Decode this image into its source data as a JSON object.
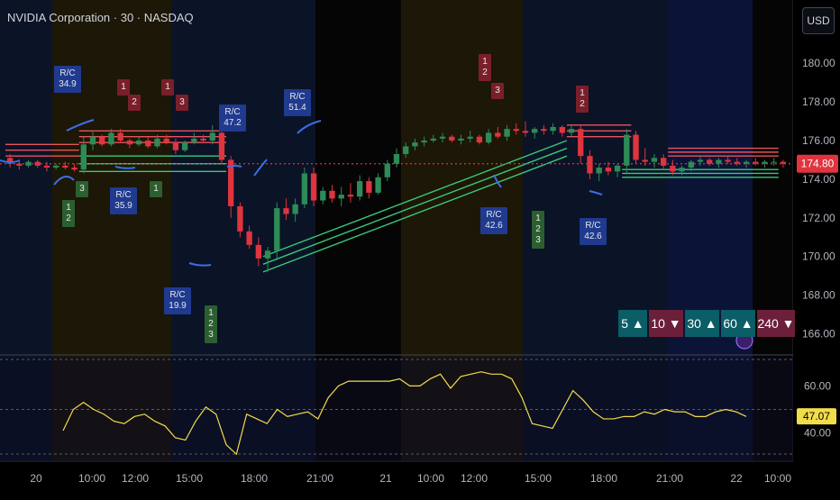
{
  "header": {
    "title": "NVIDIA Corporation · 30 · NASDAQ",
    "currency_button": "USD"
  },
  "colors": {
    "up": "#2e8b57",
    "down": "#e0343e",
    "rc_box": "#1f3a8f",
    "seq_green": "#2b5f2f",
    "seq_red": "#7a1f2a",
    "rsi": "#f2dc4a",
    "support": "#3ddc84",
    "resistance": "#ff5a66",
    "pivot": "#3b6fe8"
  },
  "price_axis": {
    "ticks": [
      "180.00",
      "178.00",
      "176.00",
      "174.00",
      "172.00",
      "170.00",
      "168.00",
      "166.00"
    ],
    "last_price": "174.80",
    "range": [
      165.0,
      181.5
    ]
  },
  "rsi_axis": {
    "ticks": [
      "60.00",
      "40.00"
    ],
    "last_value": "47.07",
    "range": [
      28,
      72
    ]
  },
  "time_axis": {
    "ticks": [
      "20",
      "10:00",
      "12:00",
      "15:00",
      "18:00",
      "21:00",
      "21",
      "10:00",
      "12:00",
      "15:00",
      "18:00",
      "21:00",
      "22",
      "10:00"
    ]
  },
  "chart_data": {
    "type": "candlestick",
    "ylim": [
      165.0,
      181.5
    ],
    "candles": [
      {
        "o": 175.1,
        "h": 175.3,
        "l": 174.6,
        "c": 174.8
      },
      {
        "o": 174.8,
        "h": 175.0,
        "l": 174.5,
        "c": 174.7
      },
      {
        "o": 174.7,
        "h": 175.0,
        "l": 174.6,
        "c": 174.9
      },
      {
        "o": 174.9,
        "h": 175.0,
        "l": 174.6,
        "c": 174.7
      },
      {
        "o": 174.7,
        "h": 174.9,
        "l": 174.4,
        "c": 174.6
      },
      {
        "o": 174.6,
        "h": 174.8,
        "l": 174.5,
        "c": 174.7
      },
      {
        "o": 174.7,
        "h": 174.9,
        "l": 174.5,
        "c": 174.6
      },
      {
        "o": 174.6,
        "h": 174.8,
        "l": 174.4,
        "c": 174.5
      },
      {
        "o": 174.5,
        "h": 176.2,
        "l": 174.3,
        "c": 175.8
      },
      {
        "o": 175.8,
        "h": 176.5,
        "l": 175.5,
        "c": 176.2
      },
      {
        "o": 176.2,
        "h": 176.3,
        "l": 175.7,
        "c": 175.8
      },
      {
        "o": 175.8,
        "h": 176.6,
        "l": 175.7,
        "c": 176.4
      },
      {
        "o": 176.4,
        "h": 176.6,
        "l": 175.9,
        "c": 176.0
      },
      {
        "o": 176.0,
        "h": 176.1,
        "l": 175.6,
        "c": 175.8
      },
      {
        "o": 175.8,
        "h": 176.2,
        "l": 175.7,
        "c": 176.0
      },
      {
        "o": 176.0,
        "h": 176.2,
        "l": 175.6,
        "c": 175.7
      },
      {
        "o": 175.7,
        "h": 176.3,
        "l": 175.6,
        "c": 176.1
      },
      {
        "o": 176.1,
        "h": 176.3,
        "l": 175.8,
        "c": 175.9
      },
      {
        "o": 175.9,
        "h": 176.1,
        "l": 175.3,
        "c": 175.5
      },
      {
        "o": 175.5,
        "h": 176.0,
        "l": 175.4,
        "c": 175.9
      },
      {
        "o": 175.9,
        "h": 176.4,
        "l": 175.8,
        "c": 176.1
      },
      {
        "o": 176.1,
        "h": 176.3,
        "l": 175.9,
        "c": 176.0
      },
      {
        "o": 176.0,
        "h": 176.8,
        "l": 175.8,
        "c": 176.4
      },
      {
        "o": 176.4,
        "h": 176.5,
        "l": 174.8,
        "c": 175.0
      },
      {
        "o": 175.0,
        "h": 175.2,
        "l": 172.0,
        "c": 172.6
      },
      {
        "o": 172.6,
        "h": 172.8,
        "l": 171.0,
        "c": 171.3
      },
      {
        "o": 171.3,
        "h": 171.6,
        "l": 170.4,
        "c": 170.6
      },
      {
        "o": 170.6,
        "h": 171.0,
        "l": 169.5,
        "c": 169.9
      },
      {
        "o": 169.9,
        "h": 170.5,
        "l": 169.2,
        "c": 170.3
      },
      {
        "o": 170.3,
        "h": 172.8,
        "l": 169.8,
        "c": 172.5
      },
      {
        "o": 172.5,
        "h": 173.0,
        "l": 171.9,
        "c": 172.2
      },
      {
        "o": 172.2,
        "h": 173.0,
        "l": 171.8,
        "c": 172.7
      },
      {
        "o": 172.7,
        "h": 174.6,
        "l": 172.5,
        "c": 174.3
      },
      {
        "o": 174.3,
        "h": 174.6,
        "l": 172.6,
        "c": 172.9
      },
      {
        "o": 172.9,
        "h": 173.6,
        "l": 172.7,
        "c": 173.4
      },
      {
        "o": 173.4,
        "h": 173.7,
        "l": 172.8,
        "c": 173.0
      },
      {
        "o": 173.0,
        "h": 173.6,
        "l": 172.6,
        "c": 173.2
      },
      {
        "o": 173.2,
        "h": 173.8,
        "l": 172.8,
        "c": 173.1
      },
      {
        "o": 173.1,
        "h": 174.2,
        "l": 172.9,
        "c": 173.9
      },
      {
        "o": 173.9,
        "h": 174.1,
        "l": 173.0,
        "c": 173.3
      },
      {
        "o": 173.3,
        "h": 174.3,
        "l": 173.2,
        "c": 174.1
      },
      {
        "o": 174.1,
        "h": 175.0,
        "l": 173.9,
        "c": 174.8
      },
      {
        "o": 174.8,
        "h": 175.6,
        "l": 174.6,
        "c": 175.3
      },
      {
        "o": 175.3,
        "h": 175.9,
        "l": 175.1,
        "c": 175.7
      },
      {
        "o": 175.7,
        "h": 176.1,
        "l": 175.5,
        "c": 175.9
      },
      {
        "o": 175.9,
        "h": 176.2,
        "l": 175.7,
        "c": 176.0
      },
      {
        "o": 176.0,
        "h": 176.3,
        "l": 175.9,
        "c": 176.1
      },
      {
        "o": 176.1,
        "h": 176.4,
        "l": 175.9,
        "c": 176.2
      },
      {
        "o": 176.2,
        "h": 176.3,
        "l": 175.9,
        "c": 176.0
      },
      {
        "o": 176.0,
        "h": 176.3,
        "l": 175.8,
        "c": 176.1
      },
      {
        "o": 176.1,
        "h": 176.5,
        "l": 175.9,
        "c": 176.2
      },
      {
        "o": 176.2,
        "h": 176.3,
        "l": 175.8,
        "c": 175.9
      },
      {
        "o": 175.9,
        "h": 176.6,
        "l": 175.8,
        "c": 176.4
      },
      {
        "o": 176.4,
        "h": 176.7,
        "l": 176.1,
        "c": 176.2
      },
      {
        "o": 176.2,
        "h": 176.8,
        "l": 176.0,
        "c": 176.6
      },
      {
        "o": 176.6,
        "h": 176.9,
        "l": 176.3,
        "c": 176.5
      },
      {
        "o": 176.5,
        "h": 177.0,
        "l": 176.2,
        "c": 176.4
      },
      {
        "o": 176.4,
        "h": 176.7,
        "l": 176.1,
        "c": 176.6
      },
      {
        "o": 176.6,
        "h": 176.8,
        "l": 176.3,
        "c": 176.5
      },
      {
        "o": 176.5,
        "h": 176.9,
        "l": 176.3,
        "c": 176.7
      },
      {
        "o": 176.7,
        "h": 176.8,
        "l": 176.2,
        "c": 176.4
      },
      {
        "o": 176.4,
        "h": 176.8,
        "l": 176.2,
        "c": 176.6
      },
      {
        "o": 176.6,
        "h": 176.8,
        "l": 174.8,
        "c": 175.2
      },
      {
        "o": 175.2,
        "h": 175.5,
        "l": 174.0,
        "c": 174.3
      },
      {
        "o": 174.3,
        "h": 174.8,
        "l": 173.9,
        "c": 174.6
      },
      {
        "o": 174.6,
        "h": 174.9,
        "l": 174.2,
        "c": 174.4
      },
      {
        "o": 174.4,
        "h": 174.8,
        "l": 174.1,
        "c": 174.7
      },
      {
        "o": 174.7,
        "h": 176.6,
        "l": 174.3,
        "c": 176.3
      },
      {
        "o": 176.3,
        "h": 176.5,
        "l": 174.8,
        "c": 175.0
      },
      {
        "o": 175.0,
        "h": 175.6,
        "l": 174.7,
        "c": 174.9
      },
      {
        "o": 174.9,
        "h": 175.3,
        "l": 174.6,
        "c": 175.1
      },
      {
        "o": 175.1,
        "h": 175.3,
        "l": 174.5,
        "c": 174.7
      },
      {
        "o": 174.7,
        "h": 175.0,
        "l": 174.2,
        "c": 174.4
      },
      {
        "o": 174.4,
        "h": 174.7,
        "l": 174.2,
        "c": 174.6
      },
      {
        "o": 174.6,
        "h": 175.0,
        "l": 174.4,
        "c": 174.9
      },
      {
        "o": 174.9,
        "h": 175.2,
        "l": 174.7,
        "c": 175.0
      },
      {
        "o": 175.0,
        "h": 175.1,
        "l": 174.7,
        "c": 174.8
      },
      {
        "o": 174.8,
        "h": 175.1,
        "l": 174.6,
        "c": 175.0
      },
      {
        "o": 175.0,
        "h": 175.2,
        "l": 174.8,
        "c": 174.9
      },
      {
        "o": 174.9,
        "h": 175.1,
        "l": 174.7,
        "c": 174.8
      },
      {
        "o": 174.8,
        "h": 175.0,
        "l": 174.6,
        "c": 174.9
      },
      {
        "o": 174.9,
        "h": 175.1,
        "l": 174.7,
        "c": 174.8
      },
      {
        "o": 174.8,
        "h": 175.0,
        "l": 174.6,
        "c": 174.9
      },
      {
        "o": 174.9,
        "h": 175.1,
        "l": 174.7,
        "c": 174.9
      },
      {
        "o": 174.9,
        "h": 175.0,
        "l": 174.6,
        "c": 174.8
      }
    ],
    "resistance_levels": [
      {
        "from": 0,
        "to": 7,
        "v": [
          175.8,
          175.5,
          175.2
        ]
      },
      {
        "from": 8,
        "to": 23,
        "v": [
          176.5,
          176.2,
          175.9
        ]
      },
      {
        "from": 61,
        "to": 67,
        "v": [
          176.8,
          176.5,
          176.2
        ]
      },
      {
        "from": 72,
        "to": 83,
        "v": [
          175.6,
          175.4,
          175.2
        ]
      }
    ],
    "support_levels": [
      {
        "from": 8,
        "to": 23,
        "v": [
          175.2,
          174.8,
          174.4
        ]
      },
      {
        "from": 28,
        "to": 60,
        "v": [
          170.0,
          169.6,
          169.2
        ],
        "to_v": [
          176.0,
          175.6,
          175.2
        ]
      },
      {
        "from": 67,
        "to": 83,
        "v": [
          174.5,
          174.3,
          174.1
        ]
      }
    ],
    "rsi": [
      41,
      50,
      53,
      50,
      48,
      45,
      44,
      47,
      48,
      45,
      43,
      38,
      37,
      45,
      51,
      48,
      35,
      31,
      48,
      46,
      44,
      50,
      47,
      48,
      49,
      46,
      55,
      60,
      62,
      62,
      62,
      62,
      62,
      63,
      60,
      60,
      63,
      65,
      59,
      64,
      65,
      66,
      65,
      65,
      63,
      55,
      44,
      43,
      42,
      50,
      58,
      54,
      49,
      46,
      46,
      47,
      47,
      49,
      48,
      50,
      49,
      49,
      47,
      47,
      49,
      50,
      49,
      47
    ]
  },
  "signals": [
    {
      "type": "rc",
      "text": [
        "R/C",
        "34.9"
      ],
      "pos": "above"
    },
    {
      "type": "seq_red",
      "text": [
        "1"
      ]
    },
    {
      "type": "seq_red",
      "text": [
        "2"
      ]
    },
    {
      "type": "seq_red",
      "text": [
        "1"
      ]
    },
    {
      "type": "seq_red",
      "text": [
        "3"
      ]
    },
    {
      "type": "seq_green",
      "text": [
        "3"
      ]
    },
    {
      "type": "seq_green",
      "text": [
        "1",
        "2"
      ]
    },
    {
      "type": "rc",
      "text": [
        "R/C",
        "35.9"
      ]
    },
    {
      "type": "seq_green",
      "text": [
        "1"
      ]
    },
    {
      "type": "rc",
      "text": [
        "R/C",
        "19.9"
      ]
    },
    {
      "type": "seq_green",
      "text": [
        "1",
        "2",
        "3"
      ]
    },
    {
      "type": "rc",
      "text": [
        "R/C",
        "47.2"
      ]
    },
    {
      "type": "rc",
      "text": [
        "R/C",
        "51.4"
      ]
    },
    {
      "type": "seq_red",
      "text": [
        "1",
        "2"
      ]
    },
    {
      "type": "seq_red",
      "text": [
        "3"
      ]
    },
    {
      "type": "rc",
      "text": [
        "R/C",
        "42.6"
      ]
    },
    {
      "type": "seq_green",
      "text": [
        "1",
        "2",
        "3"
      ]
    },
    {
      "type": "seq_red",
      "text": [
        "1",
        "2"
      ]
    },
    {
      "type": "rc",
      "text": [
        "R/C",
        "42.6"
      ]
    }
  ],
  "mtf_table": [
    {
      "label": "5 ▲",
      "dir": "up"
    },
    {
      "label": "10 ▼",
      "dir": "dn"
    },
    {
      "label": "30 ▲",
      "dir": "up"
    },
    {
      "label": "60 ▲",
      "dir": "up"
    },
    {
      "label": "240 ▼",
      "dir": "dn"
    }
  ]
}
